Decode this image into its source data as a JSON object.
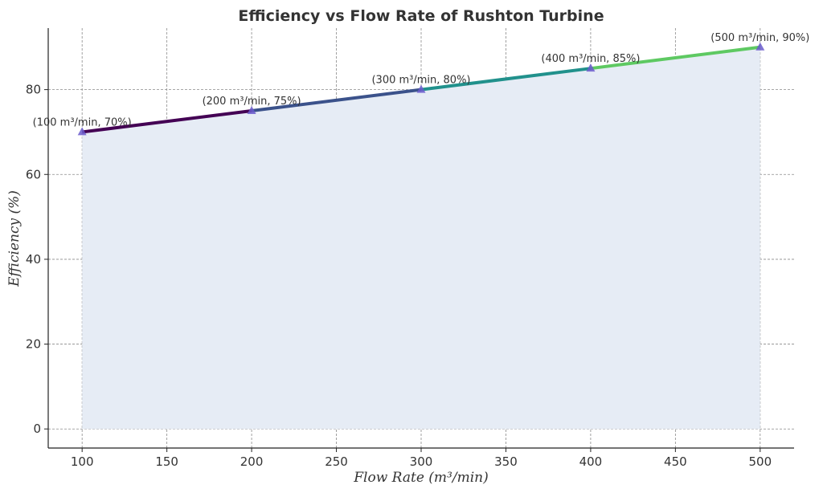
{
  "chart_data": {
    "type": "line",
    "title": "Efficiency vs Flow Rate of Rushton Turbine",
    "xlabel": "Flow Rate (m³/min)",
    "ylabel": "Efficiency (%)",
    "x": [
      100,
      200,
      300,
      400,
      500
    ],
    "y": [
      70,
      75,
      80,
      85,
      90
    ],
    "point_labels": [
      "(100 m³/min, 70%)",
      "(200 m³/min, 75%)",
      "(300 m³/min, 80%)",
      "(400 m³/min, 85%)",
      "(500 m³/min, 90%)"
    ],
    "xlim": [
      80,
      520
    ],
    "ylim": [
      -4.5,
      94.5
    ],
    "xticks": [
      100,
      150,
      200,
      250,
      300,
      350,
      400,
      450,
      500
    ],
    "yticks": [
      0,
      20,
      40,
      60,
      80
    ],
    "grid": true,
    "fill_under": true,
    "marker": "triangle",
    "colors": {
      "segments": [
        "#440154",
        "#3b528b",
        "#21918c",
        "#5ec962"
      ],
      "fill": "#e6ecf5",
      "marker": "#6a5acd"
    }
  }
}
